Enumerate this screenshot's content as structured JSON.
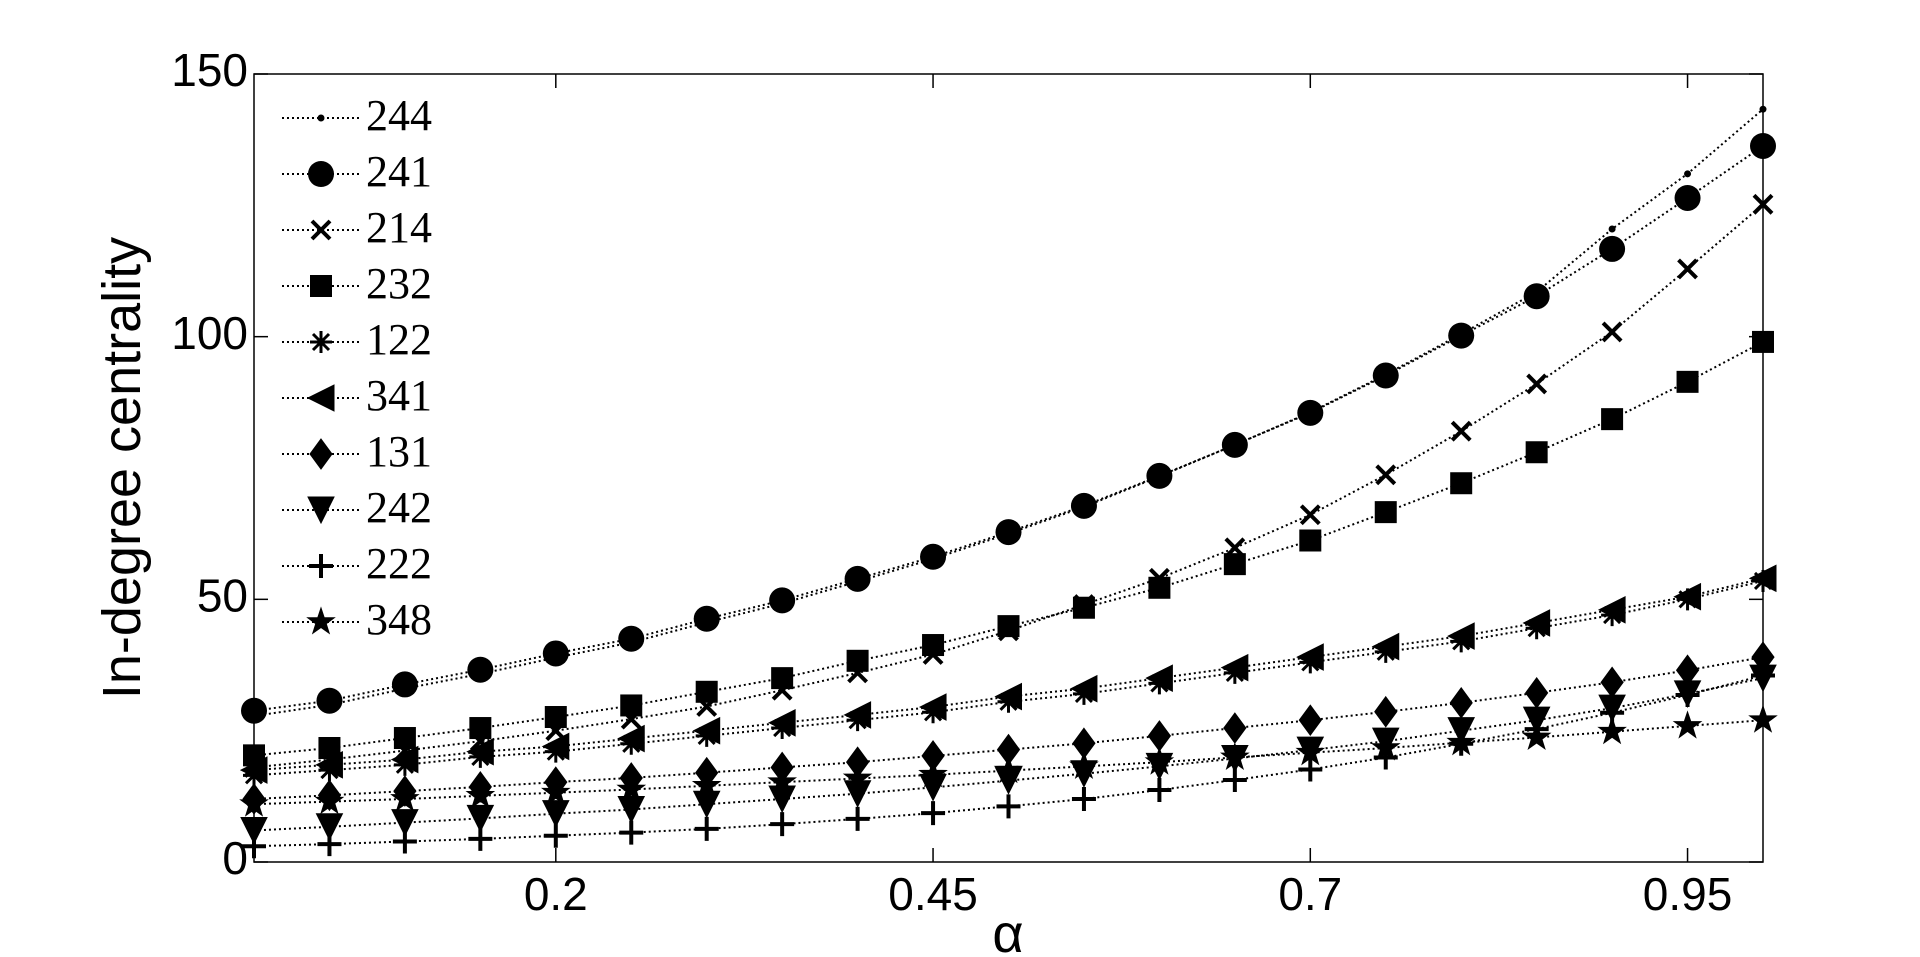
{
  "chart_data": {
    "type": "line",
    "xlabel": "α",
    "ylabel": "In-degree centrality",
    "x": [
      0,
      0.05,
      0.1,
      0.15,
      0.2,
      0.25,
      0.3,
      0.35,
      0.4,
      0.45,
      0.5,
      0.55,
      0.6,
      0.65,
      0.7,
      0.75,
      0.8,
      0.85,
      0.9,
      0.95,
      1.0
    ],
    "xlim": [
      0,
      1
    ],
    "xticks": [
      0.2,
      0.45,
      0.7,
      0.95
    ],
    "ylim": [
      0,
      150
    ],
    "yticks": [
      0,
      50,
      100,
      150
    ],
    "legend": "upper-left",
    "series": [
      {
        "name": "244",
        "color": "#000000",
        "marker": "dot",
        "values": [
          27.8,
          29.9,
          33.0,
          35.8,
          38.9,
          41.8,
          45.6,
          49.2,
          53.4,
          57.7,
          62.5,
          67.6,
          73.4,
          79.4,
          85.6,
          92.8,
          100.5,
          108.5,
          120.5,
          131.0,
          143.3
        ]
      },
      {
        "name": "241",
        "color": "#000000",
        "marker": "circle",
        "values": [
          28.8,
          30.7,
          33.8,
          36.6,
          39.7,
          42.5,
          46.3,
          49.8,
          53.9,
          58.1,
          62.8,
          67.8,
          73.5,
          79.4,
          85.5,
          92.6,
          100.2,
          107.7,
          116.7,
          126.4,
          136.3
        ]
      },
      {
        "name": "214",
        "color": "#000000",
        "marker": "x",
        "values": [
          18.0,
          19.5,
          21.2,
          23.0,
          25.0,
          27.2,
          29.6,
          32.7,
          36.0,
          39.5,
          44.0,
          49.0,
          54.0,
          59.8,
          66.1,
          73.7,
          82.0,
          91.0,
          100.9,
          112.9,
          125.2
        ]
      },
      {
        "name": "232",
        "color": "#000000",
        "marker": "square",
        "values": [
          20.3,
          21.7,
          23.6,
          25.5,
          27.6,
          29.8,
          32.4,
          35.0,
          38.3,
          41.3,
          44.9,
          48.4,
          52.2,
          56.7,
          61.2,
          66.6,
          72.1,
          78.0,
          84.3,
          91.4,
          99.0
        ]
      },
      {
        "name": "122",
        "color": "#000000",
        "marker": "asterisk",
        "values": [
          16.5,
          17.5,
          18.5,
          20.0,
          21.0,
          22.5,
          24.0,
          25.5,
          27.0,
          28.5,
          30.5,
          32.0,
          34.0,
          36.0,
          38.0,
          40.0,
          42.0,
          44.5,
          47.0,
          50.0,
          53.5
        ]
      },
      {
        "name": "341",
        "color": "#000000",
        "marker": "triangle-left",
        "values": [
          17.5,
          18.5,
          19.5,
          21.0,
          22.0,
          23.5,
          25.0,
          26.5,
          28.0,
          29.5,
          31.5,
          33.0,
          35.0,
          37.0,
          39.0,
          41.0,
          43.0,
          45.5,
          48.0,
          50.5,
          54.0
        ]
      },
      {
        "name": "131",
        "color": "#000000",
        "marker": "diamond",
        "values": [
          12.0,
          12.7,
          13.5,
          14.3,
          15.2,
          16.0,
          17.0,
          18.0,
          19.0,
          20.2,
          21.4,
          22.6,
          24.0,
          25.5,
          27.0,
          28.6,
          30.3,
          32.2,
          34.2,
          36.5,
          39.0
        ]
      },
      {
        "name": "242",
        "color": "#000000",
        "marker": "triangle-down",
        "values": [
          6.0,
          6.7,
          7.5,
          8.3,
          9.2,
          10.0,
          11.0,
          12.0,
          13.0,
          14.2,
          15.5,
          16.8,
          18.2,
          19.7,
          21.3,
          23.0,
          25.0,
          27.0,
          29.3,
          32.0,
          35.0
        ]
      },
      {
        "name": "222",
        "color": "#000000",
        "marker": "plus",
        "values": [
          3.0,
          3.4,
          3.9,
          4.4,
          5.0,
          5.6,
          6.3,
          7.2,
          8.2,
          9.3,
          10.6,
          12.0,
          13.7,
          15.6,
          17.6,
          19.9,
          22.5,
          25.3,
          28.4,
          31.8,
          35.5
        ]
      },
      {
        "name": "348",
        "color": "#000000",
        "marker": "star",
        "values": [
          11.0,
          11.5,
          12.0,
          12.6,
          13.2,
          13.8,
          14.5,
          15.2,
          15.9,
          16.6,
          17.4,
          18.2,
          19.0,
          19.9,
          20.8,
          21.7,
          22.7,
          23.7,
          24.8,
          25.9,
          27.0
        ]
      }
    ]
  }
}
